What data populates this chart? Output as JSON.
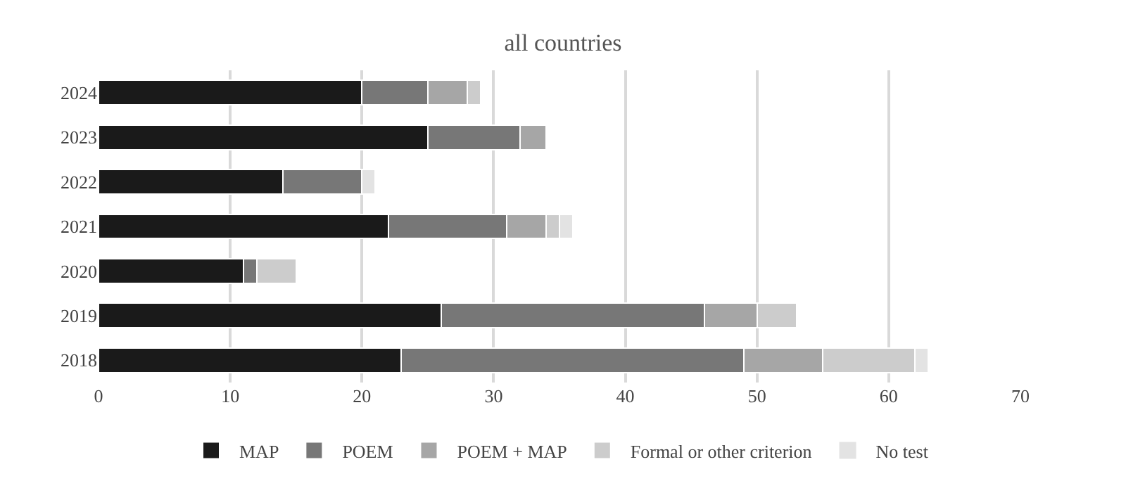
{
  "chart_data": {
    "type": "bar",
    "title": "all countries",
    "orientation": "horizontal",
    "stacked": true,
    "categories": [
      "2024",
      "2023",
      "2022",
      "2021",
      "2020",
      "2019",
      "2018"
    ],
    "series": [
      {
        "name": "MAP",
        "color": "#1a1a1a",
        "values": [
          20,
          25,
          14,
          22,
          11,
          26,
          23
        ]
      },
      {
        "name": "POEM",
        "color": "#777777",
        "values": [
          5,
          7,
          6,
          9,
          1,
          20,
          26
        ]
      },
      {
        "name": "POEM + MAP",
        "color": "#a6a6a6",
        "values": [
          3,
          2,
          0,
          3,
          0,
          4,
          6
        ]
      },
      {
        "name": "Formal or other criterion",
        "color": "#cccccc",
        "values": [
          1,
          0,
          0,
          1,
          3,
          3,
          7
        ]
      },
      {
        "name": "No test",
        "color": "#e3e3e3",
        "values": [
          0,
          0,
          1,
          1,
          0,
          0,
          1
        ]
      }
    ],
    "xlim": [
      0,
      70
    ],
    "xticks": [
      0,
      10,
      20,
      30,
      40,
      50,
      60,
      70
    ],
    "grid": "x",
    "legend": "bottom"
  }
}
